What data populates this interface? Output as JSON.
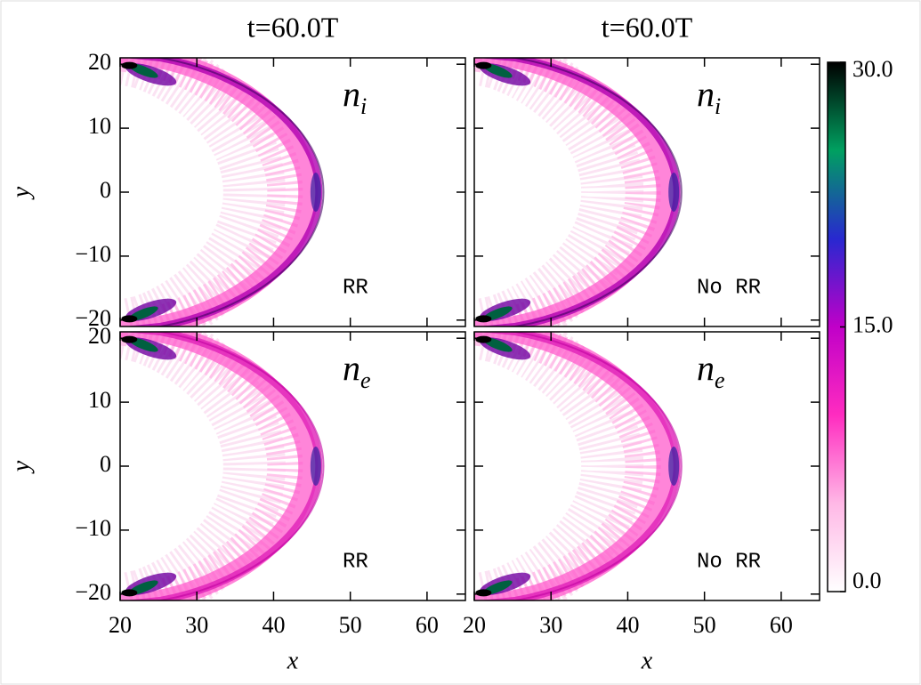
{
  "chart_data": [
    {
      "type": "heatmap",
      "title": "t=60.0T",
      "quantity": {
        "base": "n",
        "sub": "i"
      },
      "annotation": "RR",
      "ylabel": "y",
      "xlim": [
        20,
        65
      ],
      "ylim": [
        -21,
        21
      ],
      "xticks": [
        20,
        30,
        40,
        50,
        60
      ],
      "yticks": [
        {
          "value": -20,
          "label": "−20"
        },
        {
          "value": -10,
          "label": "−10"
        },
        0,
        10,
        20
      ]
    },
    {
      "type": "heatmap",
      "title": "t=60.0T",
      "quantity": {
        "base": "n",
        "sub": "i"
      },
      "annotation": "No RR",
      "xlim": [
        20,
        65
      ],
      "ylim": [
        -21,
        21
      ],
      "xticks": [
        20,
        30,
        40,
        50,
        60
      ],
      "yticks": [
        -20,
        -10,
        0,
        10,
        20
      ]
    },
    {
      "type": "heatmap",
      "quantity": {
        "base": "n",
        "sub": "e"
      },
      "annotation": "RR",
      "xlabel": "x",
      "ylabel": "y",
      "xlim": [
        20,
        65
      ],
      "ylim": [
        -21,
        21
      ],
      "xticks": [
        20,
        30,
        40,
        50,
        60
      ],
      "yticks": [
        {
          "value": -20,
          "label": "−20"
        },
        {
          "value": -10,
          "label": "−10"
        },
        0,
        10,
        20
      ]
    },
    {
      "type": "heatmap",
      "quantity": {
        "base": "n",
        "sub": "e"
      },
      "annotation": "No RR",
      "xlabel": "x",
      "xlim": [
        20,
        65
      ],
      "ylim": [
        -21,
        21
      ],
      "xticks": [
        20,
        30,
        40,
        50,
        60
      ],
      "yticks": [
        -20,
        -10,
        0,
        10,
        20
      ]
    },
    {
      "type": "colorbar",
      "zlim": [
        0,
        30
      ],
      "zticks": [
        {
          "value": 0,
          "label": "0.0"
        },
        {
          "value": 15,
          "label": "15.0"
        },
        {
          "value": 30,
          "label": "30.0"
        }
      ],
      "colors": [
        "#ffffff",
        "#ffb8e6",
        "#ff2cc0",
        "#c000c8",
        "#2828d0",
        "#00a060",
        "#000000"
      ]
    }
  ]
}
